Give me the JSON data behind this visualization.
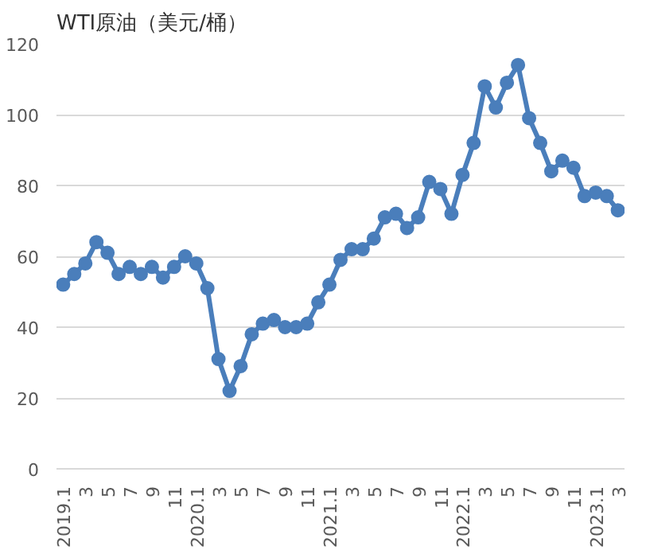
{
  "chart_data": {
    "type": "line",
    "title": "WTI原油（美元/桶）",
    "categories": [
      "2019.1",
      null,
      "3",
      null,
      "5",
      null,
      "7",
      null,
      "9",
      null,
      "11",
      null,
      "2020.1",
      null,
      "3",
      null,
      "5",
      null,
      "7",
      null,
      "9",
      null,
      "11",
      null,
      "2021.1",
      null,
      "3",
      null,
      "5",
      null,
      "7",
      null,
      "9",
      null,
      "11",
      null,
      "2022.1",
      null,
      "3",
      null,
      "5",
      null,
      "7",
      null,
      "9",
      null,
      "11",
      null,
      "2023.1",
      null,
      "3"
    ],
    "series": [
      {
        "color": "#4a7ebb",
        "values": [
          52,
          55,
          58,
          64,
          61,
          55,
          57,
          55,
          57,
          54,
          57,
          60,
          58,
          51,
          31,
          22,
          29,
          38,
          41,
          42,
          40,
          40,
          41,
          47,
          52,
          59,
          62,
          62,
          65,
          71,
          72,
          68,
          71,
          81,
          79,
          72,
          83,
          92,
          108,
          102,
          109,
          114,
          99,
          92,
          84,
          87,
          85,
          77,
          78,
          77,
          73
        ]
      }
    ],
    "ylim": [
      0,
      120
    ],
    "yticks": [
      0,
      20,
      40,
      60,
      80,
      100,
      120
    ],
    "grid": "y",
    "marker": "circle",
    "line_style": "solid"
  }
}
